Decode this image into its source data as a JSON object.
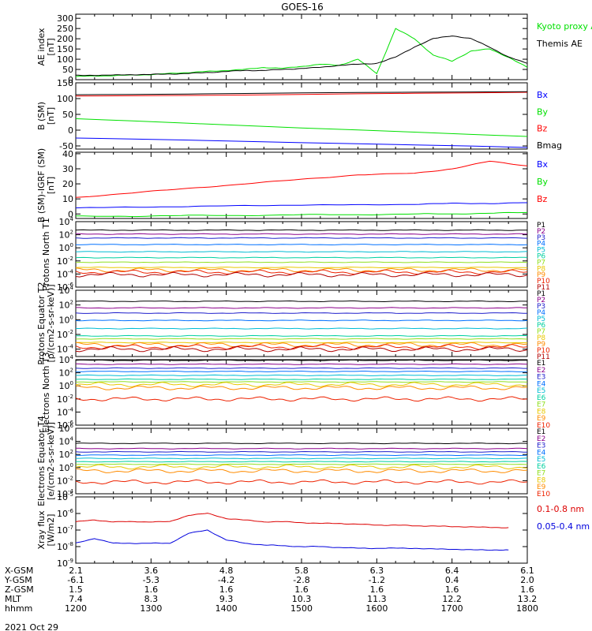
{
  "title": "GOES-16",
  "date_label": "2021 Oct 29",
  "bottom_table": {
    "labels": [
      "X-GSM",
      "Y-GSM",
      "Z-GSM",
      "MLT",
      "hhmm"
    ],
    "columns": [
      [
        "2.1",
        "-6.1",
        "1.5",
        "7.4",
        "1200"
      ],
      [
        "3.6",
        "-5.3",
        "1.6",
        "8.3",
        "1300"
      ],
      [
        "4.8",
        "-4.2",
        "1.6",
        "9.3",
        "1400"
      ],
      [
        "5.8",
        "-2.8",
        "1.6",
        "10.3",
        "1500"
      ],
      [
        "6.3",
        "-1.2",
        "1.6",
        "11.3",
        "1600"
      ],
      [
        "6.4",
        "0.4",
        "1.6",
        "12.2",
        "1700"
      ],
      [
        "6.1",
        "2.0",
        "1.6",
        "13.2",
        "1800"
      ]
    ]
  },
  "chart_data": [
    {
      "type": "line",
      "ylabel": "AE index [nT]",
      "ylim": [
        0,
        320
      ],
      "yticks": [
        "0",
        "50",
        "100",
        "150",
        "200",
        "250",
        "300"
      ],
      "x": [
        "1200",
        "1215",
        "1230",
        "1245",
        "1300",
        "1315",
        "1330",
        "1345",
        "1400",
        "1415",
        "1430",
        "1445",
        "1500",
        "1515",
        "1530",
        "1545",
        "1600",
        "1615",
        "1630",
        "1645",
        "1700",
        "1715",
        "1730",
        "1745",
        "1800"
      ],
      "series": [
        {
          "name": "Kyoto proxy AE",
          "color": "#00e000",
          "values": [
            15,
            18,
            20,
            22,
            25,
            30,
            35,
            40,
            45,
            50,
            60,
            55,
            65,
            75,
            70,
            100,
            30,
            250,
            200,
            120,
            90,
            140,
            150,
            110,
            60
          ]
        },
        {
          "name": "Themis AE",
          "color": "#000000",
          "values": [
            20,
            22,
            22,
            25,
            25,
            28,
            30,
            35,
            40,
            45,
            45,
            50,
            55,
            60,
            70,
            75,
            80,
            110,
            160,
            200,
            215,
            200,
            160,
            110,
            80
          ]
        }
      ]
    },
    {
      "type": "line",
      "ylabel": "B (SM) [nT]",
      "ylim": [
        -60,
        150
      ],
      "yticks": [
        "-50",
        "0",
        "50",
        "100",
        "150"
      ],
      "x": [
        "1200",
        "1800"
      ],
      "series": [
        {
          "name": "Bx",
          "color": "#0000ff",
          "values": [
            -25,
            -55
          ]
        },
        {
          "name": "By",
          "color": "#00e000",
          "values": [
            35,
            -20
          ]
        },
        {
          "name": "Bz",
          "color": "#ff0000",
          "values": [
            108,
            120
          ]
        },
        {
          "name": "Bmag",
          "color": "#000000",
          "values": [
            113,
            122
          ]
        }
      ]
    },
    {
      "type": "line",
      "ylabel": "B (SM)-IGRF (SM) [nT]",
      "ylim": [
        -3,
        41
      ],
      "yticks": [
        "0",
        "10",
        "20",
        "30",
        "40"
      ],
      "x": [
        "1200",
        "1245",
        "1330",
        "1415",
        "1500",
        "1545",
        "1630",
        "1700",
        "1730",
        "1800"
      ],
      "series": [
        {
          "name": "Bx",
          "color": "#0000ff",
          "values": [
            4,
            4.5,
            5,
            5.5,
            6,
            6,
            6.5,
            7,
            7,
            7.5
          ]
        },
        {
          "name": "By",
          "color": "#00e000",
          "values": [
            -1.5,
            -1.5,
            -1,
            -1,
            -0.5,
            -0.5,
            0,
            0,
            0.5,
            1
          ]
        },
        {
          "name": "Bz",
          "color": "#ff0000",
          "values": [
            11,
            14,
            17,
            20,
            23,
            26,
            27,
            30,
            35,
            32
          ]
        }
      ]
    },
    {
      "type": "line",
      "ylabel": "Protons North T1",
      "yscale": "log",
      "ylim": [
        -6,
        4
      ],
      "yticks": [
        "10^-6",
        "10^-4",
        "10^-2",
        "10^0",
        "10^2",
        "10^4"
      ],
      "series": [
        {
          "name": "P1",
          "color": "#000000",
          "level": 2.7
        },
        {
          "name": "P2",
          "color": "#8b008b",
          "level": 2.1
        },
        {
          "name": "P3",
          "color": "#1e1ecc",
          "level": 1.5
        },
        {
          "name": "P4",
          "color": "#0070ff",
          "level": 0.5
        },
        {
          "name": "P5",
          "color": "#00bcd4",
          "level": -0.6
        },
        {
          "name": "P6",
          "color": "#00d0a0",
          "level": -1.5
        },
        {
          "name": "P7",
          "color": "#90e020",
          "level": -2.2
        },
        {
          "name": "P8",
          "color": "#e8c800",
          "level": -3.0
        },
        {
          "name": "P9",
          "color": "#ff8c00",
          "level": -3.4
        },
        {
          "name": "P10",
          "color": "#ee2200",
          "level": -3.7
        },
        {
          "name": "P11",
          "color": "#b00000",
          "level": -4.1
        }
      ]
    },
    {
      "type": "line",
      "ylabel": "Protons Equator T2 [p/(cm2-s-sr-keV)]",
      "yscale": "log",
      "ylim": [
        -5,
        4
      ],
      "yticks": [
        "10^-4",
        "10^-2",
        "10^0",
        "10^2",
        "10^4"
      ],
      "series": [
        {
          "name": "P1",
          "color": "#000000",
          "level": 2.5
        },
        {
          "name": "P2",
          "color": "#8b008b",
          "level": 1.6
        },
        {
          "name": "P3",
          "color": "#1e1ecc",
          "level": 0.9
        },
        {
          "name": "P4",
          "color": "#0070ff",
          "level": -0.1
        },
        {
          "name": "P5",
          "color": "#00bcd4",
          "level": -1.2
        },
        {
          "name": "P6",
          "color": "#00d0a0",
          "level": -2.2
        },
        {
          "name": "P7",
          "color": "#90e020",
          "level": -2.6
        },
        {
          "name": "P8",
          "color": "#e8c800",
          "level": -3.1
        },
        {
          "name": "P9",
          "color": "#ff8c00",
          "level": -3.4
        },
        {
          "name": "P10",
          "color": "#ee2200",
          "level": -3.7
        },
        {
          "name": "P11",
          "color": "#b00000",
          "level": -4.0
        }
      ]
    },
    {
      "type": "line",
      "ylabel": "Electrons North T3",
      "yscale": "log",
      "ylim": [
        -6,
        4
      ],
      "yticks": [
        "10^-6",
        "10^-4",
        "10^-2",
        "10^0",
        "10^2",
        "10^4"
      ],
      "series": [
        {
          "name": "E1",
          "color": "#000000",
          "level": 3.9
        },
        {
          "name": "E2",
          "color": "#8b008b",
          "level": 3.3
        },
        {
          "name": "E3",
          "color": "#1e1ecc",
          "level": 2.7
        },
        {
          "name": "E4",
          "color": "#0070ff",
          "level": 2.2
        },
        {
          "name": "E5",
          "color": "#00bcd4",
          "level": 1.6
        },
        {
          "name": "E6",
          "color": "#00d0a0",
          "level": 1.0
        },
        {
          "name": "E7",
          "color": "#90e020",
          "level": 0.6
        },
        {
          "name": "E8",
          "color": "#e8c800",
          "level": 0.2
        },
        {
          "name": "E9",
          "color": "#ff8c00",
          "level": -0.3
        },
        {
          "name": "E10",
          "color": "#ee2200",
          "level": -2.0
        }
      ]
    },
    {
      "type": "line",
      "ylabel": "Electrons Equator T4 [e/(cm2-s-sr-keV)]",
      "yscale": "log",
      "ylim": [
        -4,
        6
      ],
      "yticks": [
        "10^-4",
        "10^-2",
        "10^0",
        "10^2",
        "10^4",
        "10^6"
      ],
      "series": [
        {
          "name": "E1",
          "color": "#000000",
          "level": 3.7
        },
        {
          "name": "E2",
          "color": "#8b008b",
          "level": 2.9
        },
        {
          "name": "E3",
          "color": "#1e1ecc",
          "level": 2.4
        },
        {
          "name": "E4",
          "color": "#0070ff",
          "level": 1.9
        },
        {
          "name": "E5",
          "color": "#00bcd4",
          "level": 1.4
        },
        {
          "name": "E6",
          "color": "#00d0a0",
          "level": 0.9
        },
        {
          "name": "E7",
          "color": "#90e020",
          "level": 0.5
        },
        {
          "name": "E8",
          "color": "#e8c800",
          "level": 0.1
        },
        {
          "name": "E9",
          "color": "#ff8c00",
          "level": -0.5
        },
        {
          "name": "E10",
          "color": "#ee2200",
          "level": -2.2
        }
      ]
    },
    {
      "type": "line",
      "ylabel": "Xray flux [W/m2]",
      "yscale": "log",
      "ylim": [
        -9,
        -5
      ],
      "yticks": [
        "10^-9",
        "10^-8",
        "10^-7",
        "10^-6",
        "10^-5"
      ],
      "x": [
        "1200",
        "1215",
        "1230",
        "1245",
        "1300",
        "1315",
        "1330",
        "1345",
        "1400",
        "1415",
        "1430",
        "1445",
        "1500",
        "1515",
        "1530",
        "1545",
        "1600",
        "1615",
        "1630",
        "1645",
        "1700",
        "1715",
        "1730",
        "1745"
      ],
      "series": [
        {
          "name": "0.1-0.8 nm",
          "color": "#dd0000",
          "values": [
            -6.5,
            -6.4,
            -6.5,
            -6.5,
            -6.5,
            -6.5,
            -6.1,
            -6.0,
            -6.3,
            -6.4,
            -6.5,
            -6.5,
            -6.55,
            -6.6,
            -6.6,
            -6.65,
            -6.7,
            -6.7,
            -6.75,
            -6.75,
            -6.8,
            -6.8,
            -6.85,
            -6.85
          ]
        },
        {
          "name": "0.05-0.4 nm",
          "color": "#0000dd",
          "values": [
            -7.8,
            -7.5,
            -7.8,
            -7.8,
            -7.8,
            -7.8,
            -7.2,
            -7.0,
            -7.6,
            -7.8,
            -7.9,
            -7.95,
            -8.0,
            -8.0,
            -8.05,
            -8.1,
            -8.1,
            -8.1,
            -8.1,
            -8.15,
            -8.15,
            -8.2,
            -8.2,
            -8.2
          ]
        }
      ]
    }
  ]
}
